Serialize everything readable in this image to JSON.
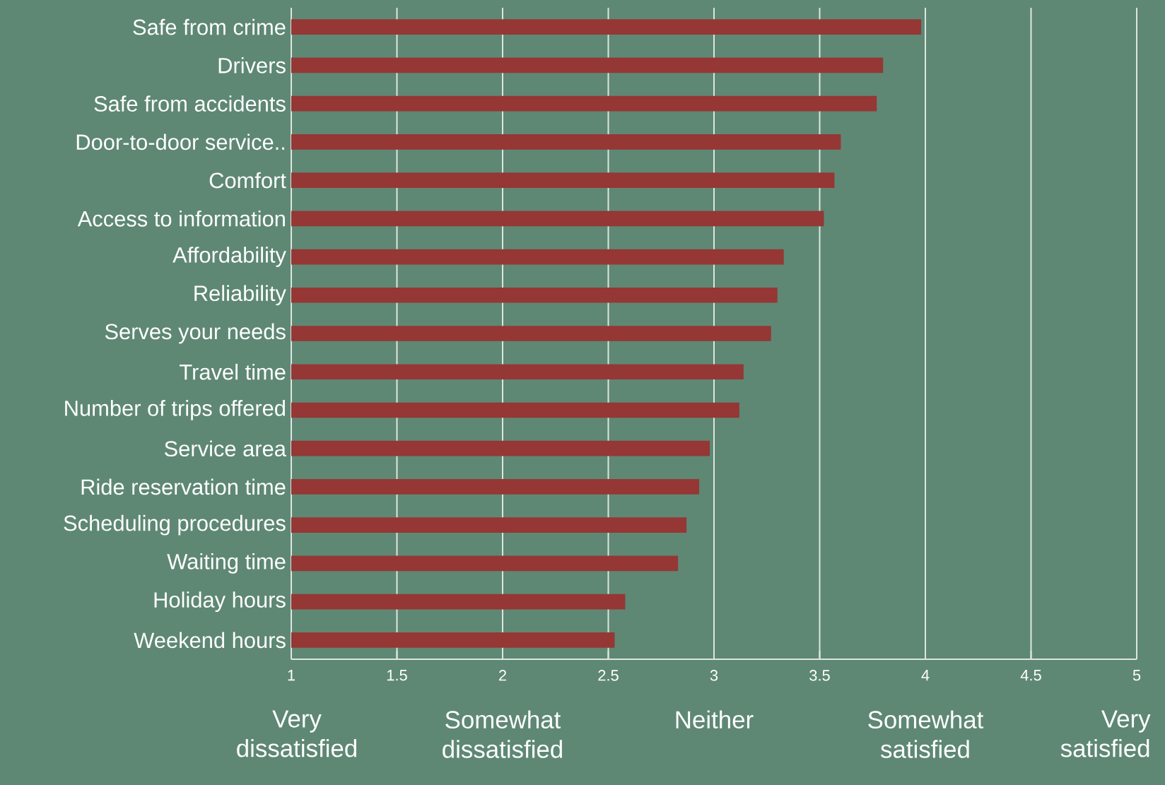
{
  "chart_data": {
    "type": "bar",
    "orientation": "horizontal",
    "categories": [
      "Safe from crime",
      "Drivers",
      "Safe from accidents",
      "Door-to-door service..",
      "Comfort",
      "Access to information",
      "Affordability",
      "Reliability",
      "Serves your needs",
      "Travel time",
      "Number of trips offered",
      "Service area",
      "Ride reservation time",
      "Scheduling procedures",
      "Waiting time",
      "Holiday hours",
      "Weekend hours"
    ],
    "values": [
      3.98,
      3.8,
      3.77,
      3.6,
      3.57,
      3.52,
      3.33,
      3.3,
      3.27,
      3.14,
      3.12,
      2.98,
      2.93,
      2.87,
      2.83,
      2.58,
      2.53
    ],
    "color": "#953735",
    "xlim": [
      1,
      5
    ],
    "xticks": [
      1,
      1.5,
      2,
      2.5,
      3,
      3.5,
      4,
      4.5,
      5
    ],
    "grid": "x",
    "annotations": [
      "Very dissatisfied",
      "Somewhat dissatisfied",
      "Neither",
      "Somewhat satisfied",
      "Very satisfied"
    ]
  }
}
